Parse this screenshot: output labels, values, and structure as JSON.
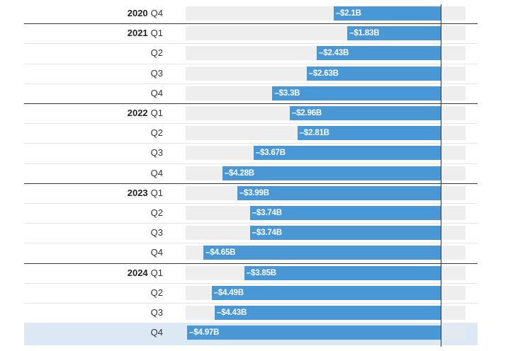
{
  "chart_data": {
    "type": "bar",
    "orientation": "horizontal",
    "unit_prefix": "$",
    "unit_suffix": "B",
    "xlim": [
      -5.55,
      0.55
    ],
    "rows": [
      {
        "year": "2020",
        "quarter": "Q4",
        "value": -2.1,
        "label": "–$2.1B"
      },
      {
        "year": "2021",
        "quarter": "Q1",
        "value": -1.83,
        "label": "–$1.83B"
      },
      {
        "year": "",
        "quarter": "Q2",
        "value": -2.43,
        "label": "–$2.43B"
      },
      {
        "year": "",
        "quarter": "Q3",
        "value": -2.63,
        "label": "–$2.63B"
      },
      {
        "year": "",
        "quarter": "Q4",
        "value": -3.3,
        "label": "–$3.3B"
      },
      {
        "year": "2022",
        "quarter": "Q1",
        "value": -2.96,
        "label": "–$2.96B"
      },
      {
        "year": "",
        "quarter": "Q2",
        "value": -2.81,
        "label": "–$2.81B"
      },
      {
        "year": "",
        "quarter": "Q3",
        "value": -3.67,
        "label": "–$3.67B"
      },
      {
        "year": "",
        "quarter": "Q4",
        "value": -4.28,
        "label": "–$4.28B"
      },
      {
        "year": "2023",
        "quarter": "Q1",
        "value": -3.99,
        "label": "–$3.99B"
      },
      {
        "year": "",
        "quarter": "Q2",
        "value": -3.74,
        "label": "–$3.74B"
      },
      {
        "year": "",
        "quarter": "Q3",
        "value": -3.74,
        "label": "–$3.74B"
      },
      {
        "year": "",
        "quarter": "Q4",
        "value": -4.65,
        "label": "–$4.65B"
      },
      {
        "year": "2024",
        "quarter": "Q1",
        "value": -3.85,
        "label": "–$3.85B"
      },
      {
        "year": "",
        "quarter": "Q2",
        "value": -4.49,
        "label": "–$4.49B"
      },
      {
        "year": "",
        "quarter": "Q3",
        "value": -4.43,
        "label": "–$4.43B"
      },
      {
        "year": "",
        "quarter": "Q4",
        "value": -4.97,
        "label": "–$4.97B",
        "highlighted": true
      }
    ]
  },
  "colors": {
    "bar": "#4a97d6",
    "track": "#eeeeee",
    "highlight_row": "#dce8f3"
  }
}
